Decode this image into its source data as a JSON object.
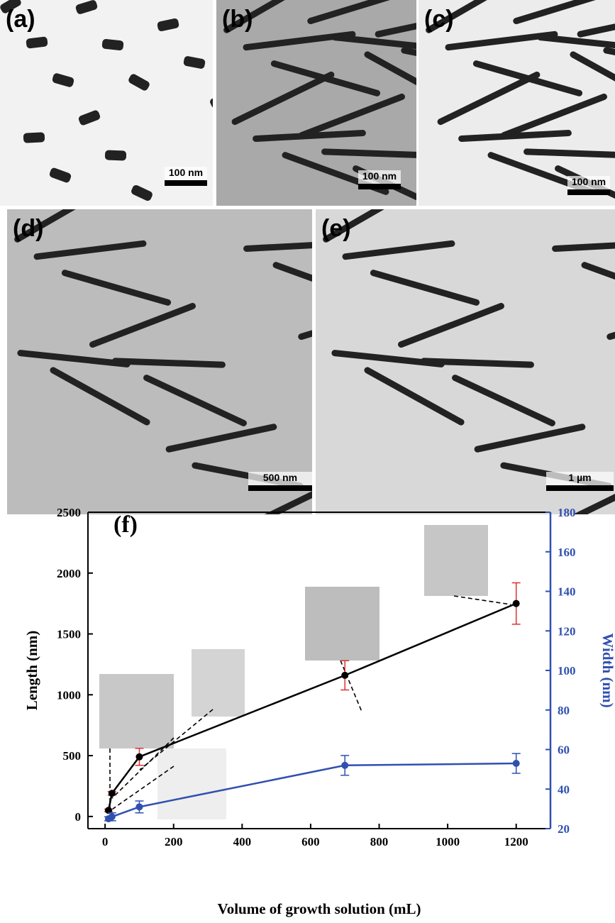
{
  "panels": [
    {
      "label": "(a)",
      "scale": "100 nm"
    },
    {
      "label": "(b)",
      "scale": "100 nm"
    },
    {
      "label": "(c)",
      "scale": "100 nm"
    },
    {
      "label": "(d)",
      "scale": "500 nm"
    },
    {
      "label": "(e)",
      "scale": "1 µm"
    }
  ],
  "chart_data": {
    "type": "line",
    "panel_label": "(f)",
    "x_label": "Volume of growth solution (mL)",
    "y_label": "Length (nm)",
    "y2_label": "Width (nm)",
    "xlim": [
      -50,
      1300
    ],
    "xticks": [
      0,
      200,
      400,
      600,
      800,
      1000,
      1200
    ],
    "ylim": [
      -100,
      2500
    ],
    "yticks": [
      0,
      500,
      1000,
      1500,
      2000,
      2500
    ],
    "y2lim": [
      20,
      180
    ],
    "y2ticks": [
      20,
      40,
      60,
      80,
      100,
      120,
      140,
      160,
      180
    ],
    "series": [
      {
        "color": "#000000",
        "error_color": "#e03030",
        "x": [
          10,
          20,
          100,
          700,
          1200
        ],
        "values": [
          50,
          190,
          490,
          1160,
          1750
        ],
        "errors": [
          10,
          15,
          70,
          120,
          170
        ]
      },
      {
        "color": "#3050b0",
        "error_color": "#3050b0",
        "axis": "y2",
        "x": [
          10,
          20,
          100,
          700,
          1200
        ],
        "values": [
          25,
          26,
          31,
          52,
          53
        ],
        "errors": [
          1,
          2,
          3,
          5,
          5
        ]
      }
    ]
  }
}
